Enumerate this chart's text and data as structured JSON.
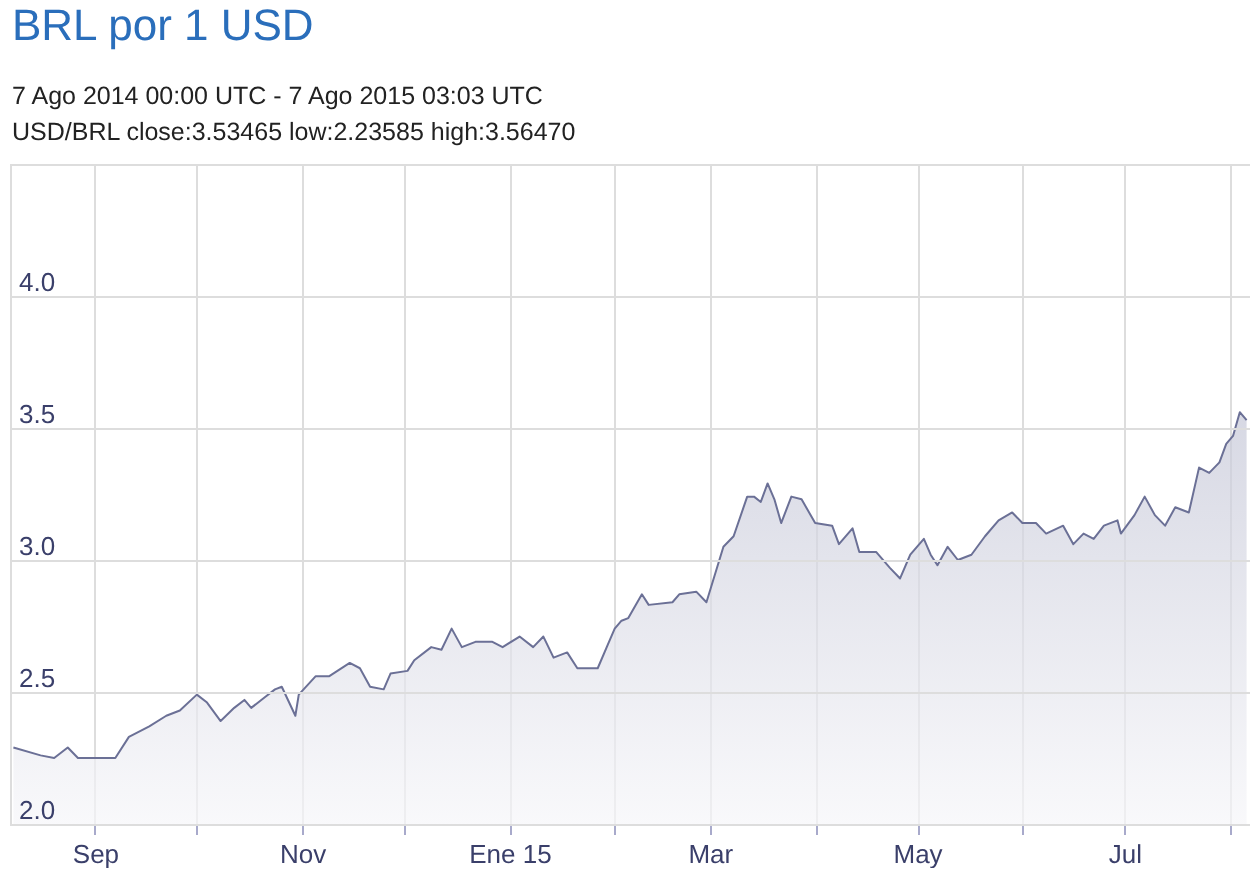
{
  "chart_data": {
    "type": "area",
    "title": "BRL por 1 USD",
    "subtitle": "7 Ago 2014 00:00 UTC - 7 Ago 2015 03:03 UTC",
    "annotations": [
      "USD/BRL close:3.53465 low:2.23585 high:3.56470"
    ],
    "x": [
      "2014-08-08",
      "2014-08-16",
      "2014-08-20",
      "2014-08-24",
      "2014-08-27",
      "2014-09-01",
      "2014-09-07",
      "2014-09-11",
      "2014-09-17",
      "2014-09-22",
      "2014-09-26",
      "2014-10-01",
      "2014-10-04",
      "2014-10-08",
      "2014-10-12",
      "2014-10-15",
      "2014-10-17",
      "2014-10-21",
      "2014-10-24",
      "2014-10-26",
      "2014-10-30",
      "2014-10-31",
      "2014-11-05",
      "2014-11-09",
      "2014-11-15",
      "2014-11-18",
      "2014-11-21",
      "2014-11-25",
      "2014-11-27",
      "2014-12-02",
      "2014-12-04",
      "2014-12-09",
      "2014-12-12",
      "2014-12-15",
      "2014-12-18",
      "2014-12-22",
      "2014-12-27",
      "2014-12-30",
      "2015-01-04",
      "2015-01-08",
      "2015-01-11",
      "2015-01-14",
      "2015-01-18",
      "2015-01-21",
      "2015-01-27",
      "2015-01-30",
      "2015-02-01",
      "2015-02-03",
      "2015-02-05",
      "2015-02-09",
      "2015-02-11",
      "2015-02-18",
      "2015-02-20",
      "2015-02-25",
      "2015-02-28",
      "2015-03-05",
      "2015-03-08",
      "2015-03-12",
      "2015-03-14",
      "2015-03-16",
      "2015-03-18",
      "2015-03-20",
      "2015-03-22",
      "2015-03-25",
      "2015-03-28",
      "2015-04-01",
      "2015-04-06",
      "2015-04-08",
      "2015-04-12",
      "2015-04-14",
      "2015-04-19",
      "2015-04-23",
      "2015-04-26",
      "2015-04-29",
      "2015-05-03",
      "2015-05-05",
      "2015-05-07",
      "2015-05-10",
      "2015-05-13",
      "2015-05-17",
      "2015-05-21",
      "2015-05-25",
      "2015-05-29",
      "2015-06-01",
      "2015-06-05",
      "2015-06-08",
      "2015-06-13",
      "2015-06-16",
      "2015-06-19",
      "2015-06-22",
      "2015-06-25",
      "2015-06-29",
      "2015-06-30",
      "2015-07-04",
      "2015-07-07",
      "2015-07-10",
      "2015-07-13",
      "2015-07-16",
      "2015-07-20",
      "2015-07-23",
      "2015-07-26",
      "2015-07-29",
      "2015-07-31",
      "2015-08-02",
      "2015-08-04",
      "2015-08-06"
    ],
    "series": [
      {
        "color": "#6b7096",
        "values": [
          2.29,
          2.26,
          2.25,
          2.29,
          2.25,
          2.25,
          2.25,
          2.33,
          2.37,
          2.41,
          2.43,
          2.49,
          2.46,
          2.39,
          2.44,
          2.47,
          2.44,
          2.48,
          2.51,
          2.52,
          2.41,
          2.49,
          2.56,
          2.56,
          2.61,
          2.59,
          2.52,
          2.51,
          2.57,
          2.58,
          2.62,
          2.67,
          2.66,
          2.74,
          2.67,
          2.69,
          2.69,
          2.67,
          2.71,
          2.67,
          2.71,
          2.63,
          2.65,
          2.59,
          2.59,
          2.68,
          2.74,
          2.77,
          2.78,
          2.87,
          2.83,
          2.84,
          2.87,
          2.88,
          2.84,
          3.05,
          3.09,
          3.24,
          3.24,
          3.22,
          3.29,
          3.23,
          3.14,
          3.24,
          3.23,
          3.14,
          3.13,
          3.06,
          3.12,
          3.03,
          3.03,
          2.97,
          2.93,
          3.02,
          3.08,
          3.02,
          2.98,
          3.05,
          3.0,
          3.02,
          3.09,
          3.15,
          3.18,
          3.14,
          3.14,
          3.1,
          3.13,
          3.06,
          3.1,
          3.08,
          3.13,
          3.15,
          3.1,
          3.17,
          3.24,
          3.17,
          3.13,
          3.2,
          3.18,
          3.35,
          3.33,
          3.37,
          3.44,
          3.47,
          3.56,
          3.53
        ]
      }
    ],
    "xlim": [
      "2014-08-07",
      "2015-08-07"
    ],
    "xticks": [
      {
        "value": "2014-09-01",
        "label": "Sep"
      },
      {
        "value": "2014-10-01",
        "label": null
      },
      {
        "value": "2014-11-01",
        "label": "Nov"
      },
      {
        "value": "2014-12-01",
        "label": null
      },
      {
        "value": "2015-01-01",
        "label": "Ene 15"
      },
      {
        "value": "2015-02-01",
        "label": null
      },
      {
        "value": "2015-03-01",
        "label": "Mar"
      },
      {
        "value": "2015-04-01",
        "label": null
      },
      {
        "value": "2015-05-01",
        "label": "May"
      },
      {
        "value": "2015-06-01",
        "label": null
      },
      {
        "value": "2015-07-01",
        "label": "Jul"
      },
      {
        "value": "2015-08-01",
        "label": null
      }
    ],
    "ylim": [
      2.0,
      4.5
    ],
    "yticks": [
      {
        "value": 2,
        "label": "2.0"
      },
      {
        "value": 2.5,
        "label": "2.5"
      },
      {
        "value": 3,
        "label": "3.0"
      },
      {
        "value": 3.5,
        "label": "3.5"
      },
      {
        "value": 4,
        "label": "4.0"
      }
    ],
    "grid": true
  }
}
